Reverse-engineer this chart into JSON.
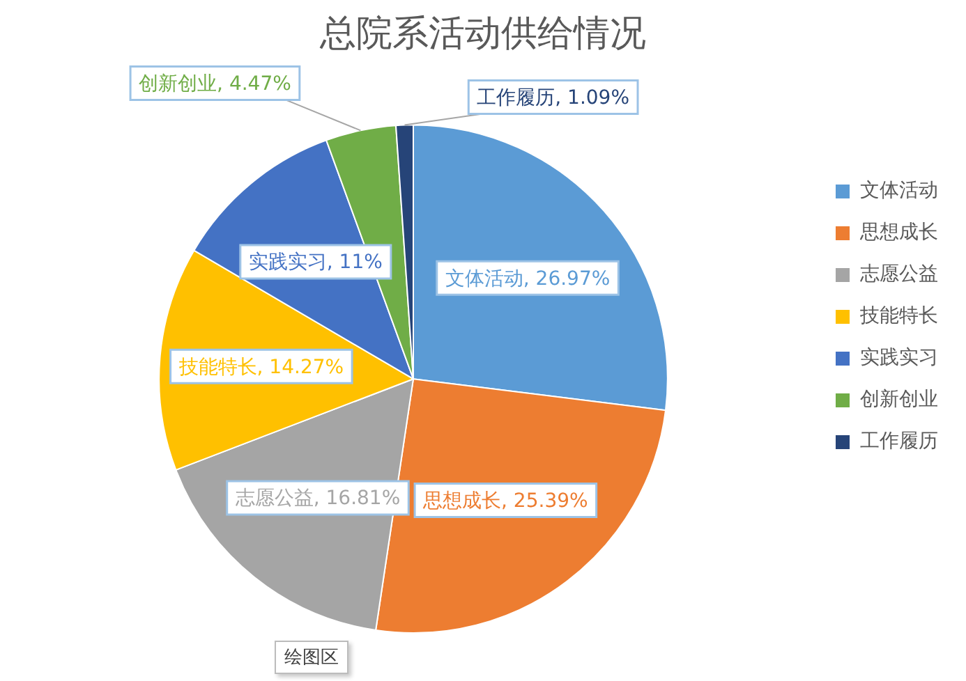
{
  "chart_data": {
    "type": "pie",
    "title": "总院系活动供给情况",
    "categories": [
      "文体活动",
      "思想成长",
      "志愿公益",
      "技能特长",
      "实践实习",
      "创新创业",
      "工作履历"
    ],
    "values": [
      26.97,
      25.39,
      16.81,
      14.27,
      11,
      4.47,
      1.09
    ],
    "colors": [
      "#5b9bd5",
      "#ed7d31",
      "#a5a5a5",
      "#ffc000",
      "#4472c4",
      "#70ad47",
      "#264478"
    ],
    "value_labels": [
      "文体活动, 26.97%",
      "思想成长, 25.39%",
      "志愿公益, 16.81%",
      "技能特长, 14.27%",
      "实践实习, 11%",
      "创新创业, 4.47%",
      "工作履历, 1.09%"
    ],
    "legend": "right",
    "annotations": [
      "绘图区"
    ]
  }
}
